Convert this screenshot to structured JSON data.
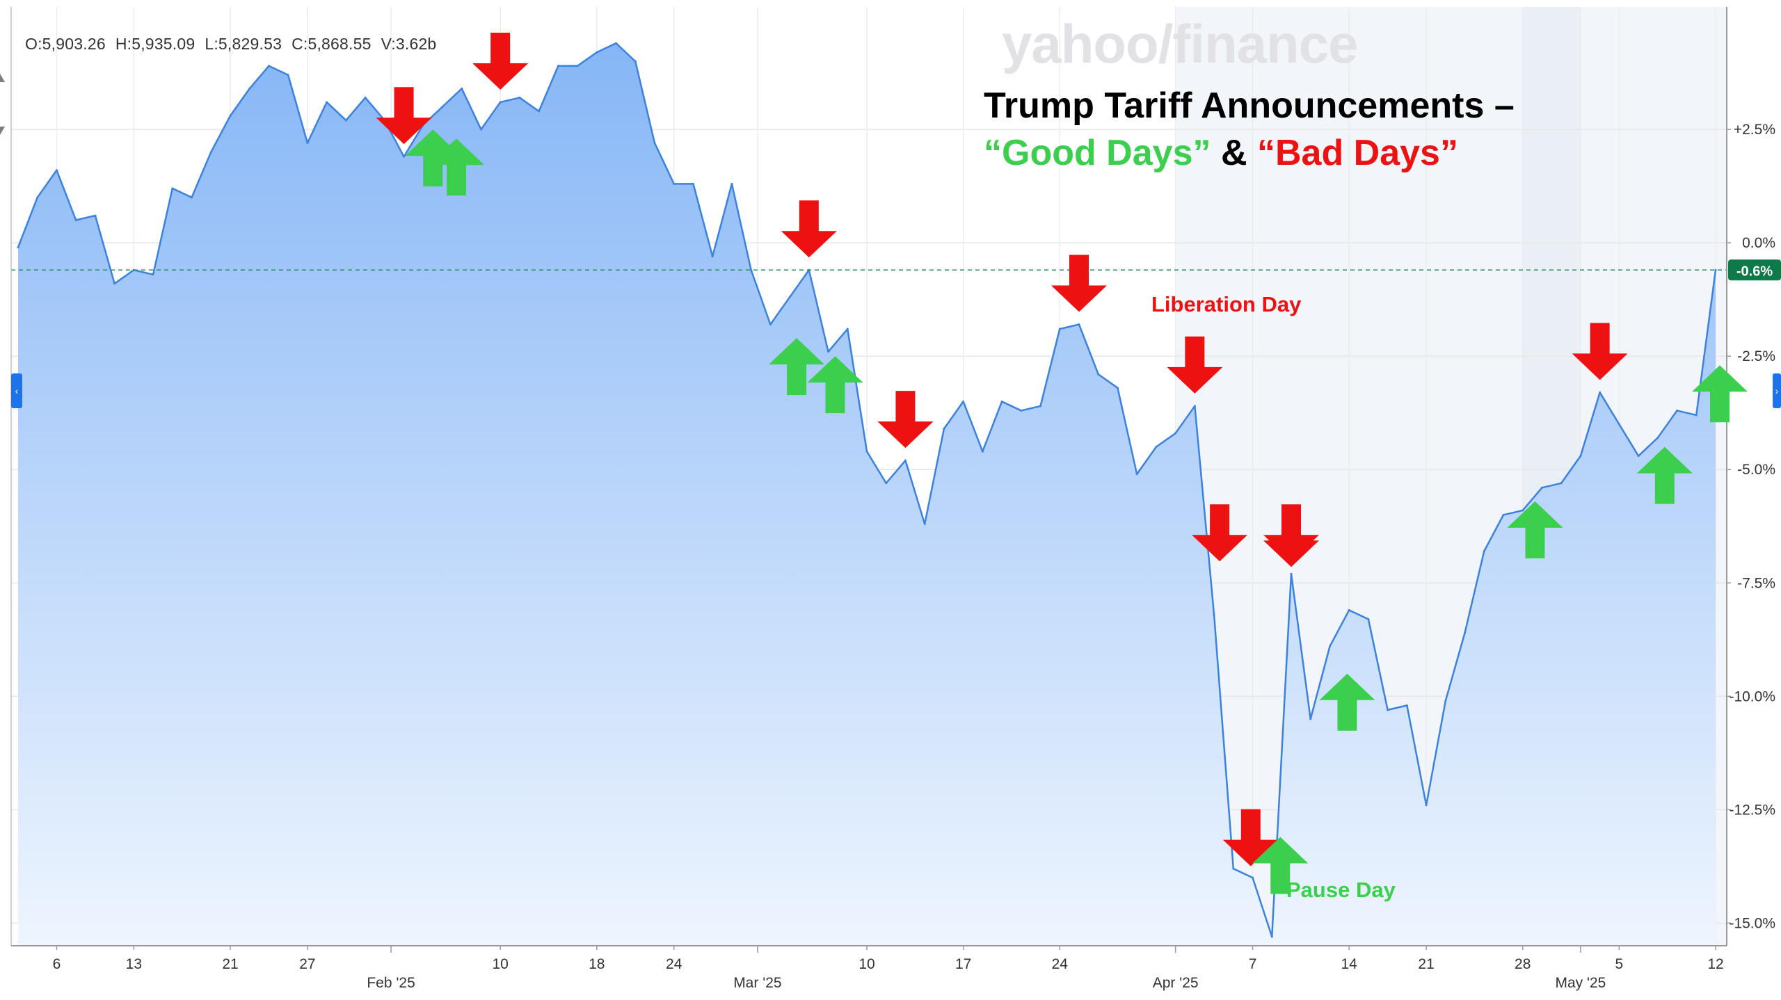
{
  "ohlc": {
    "open": "O:5,903.26",
    "high": "H:5,935.09",
    "low": "L:5,829.53",
    "close": "C:5,868.55",
    "volume": "V:3.62b"
  },
  "watermark": "yahoo/finance",
  "title_line1": "Trump Tariff Announcements –",
  "title_good": "“Good Days”",
  "title_amp": "&",
  "title_bad": "“Bad Days”",
  "annotations": {
    "liberation_day": "Liberation Day",
    "pause_day": "Pause Day"
  },
  "current_badge": "-0.6%",
  "colors": {
    "line": "#3b82e0",
    "fill_top": "#86b6f6",
    "fill_bottom": "#eef5fe",
    "good": "#3ccf4e",
    "bad": "#ee1111",
    "baseline": "#1f8f5f",
    "badge": "#0e7a4a"
  },
  "nav": {
    "left": "‹",
    "right": "›"
  },
  "chart_data": {
    "type": "area",
    "title": "Trump Tariff Announcements – “Good Days” & “Bad Days”",
    "ylabel": "",
    "ylim": [
      -15.5,
      5.2
    ],
    "y_ticks": [
      2.5,
      0.0,
      -2.5,
      -5.0,
      -7.5,
      -10.0,
      -12.5,
      -15.0
    ],
    "y_tick_labels": [
      "+2.5%",
      "0.0%",
      "-2.5%",
      "-5.0%",
      "-7.5%",
      "-10.0%",
      "-12.5%",
      "-15.0%"
    ],
    "reference_line": -0.6,
    "x_ticks": [
      {
        "label": "6",
        "x": "2025-01-06"
      },
      {
        "label": "13",
        "x": "2025-01-13"
      },
      {
        "label": "21",
        "x": "2025-01-21"
      },
      {
        "label": "27",
        "x": "2025-01-27"
      },
      {
        "label": "Feb '25",
        "x": "2025-02-01",
        "major": true
      },
      {
        "label": "10",
        "x": "2025-02-10"
      },
      {
        "label": "18",
        "x": "2025-02-18"
      },
      {
        "label": "24",
        "x": "2025-02-24"
      },
      {
        "label": "Mar '25",
        "x": "2025-03-01",
        "major": true
      },
      {
        "label": "10",
        "x": "2025-03-10"
      },
      {
        "label": "17",
        "x": "2025-03-17"
      },
      {
        "label": "24",
        "x": "2025-03-24"
      },
      {
        "label": "Apr '25",
        "x": "2025-04-01",
        "major": true
      },
      {
        "label": "7",
        "x": "2025-04-07"
      },
      {
        "label": "14",
        "x": "2025-04-14"
      },
      {
        "label": "21",
        "x": "2025-04-21"
      },
      {
        "label": "28",
        "x": "2025-04-28"
      },
      {
        "label": "May '25",
        "x": "2025-05-01",
        "major": true
      },
      {
        "label": "5",
        "x": "2025-05-05"
      },
      {
        "label": "12",
        "x": "2025-05-12"
      }
    ],
    "series": [
      {
        "points": [
          [
            "2025-01-02",
            -0.1
          ],
          [
            "2025-01-03",
            1.0
          ],
          [
            "2025-01-06",
            1.6
          ],
          [
            "2025-01-07",
            0.5
          ],
          [
            "2025-01-08",
            0.6
          ],
          [
            "2025-01-10",
            -0.9
          ],
          [
            "2025-01-13",
            -0.6
          ],
          [
            "2025-01-14",
            -0.7
          ],
          [
            "2025-01-15",
            1.2
          ],
          [
            "2025-01-16",
            1.0
          ],
          [
            "2025-01-17",
            2.0
          ],
          [
            "2025-01-21",
            2.8
          ],
          [
            "2025-01-22",
            3.4
          ],
          [
            "2025-01-23",
            3.9
          ],
          [
            "2025-01-24",
            3.7
          ],
          [
            "2025-01-27",
            2.2
          ],
          [
            "2025-01-28",
            3.1
          ],
          [
            "2025-01-29",
            2.7
          ],
          [
            "2025-01-30",
            3.2
          ],
          [
            "2025-01-31",
            2.7
          ],
          [
            "2025-02-03",
            1.9
          ],
          [
            "2025-02-04",
            2.6
          ],
          [
            "2025-02-05",
            3.0
          ],
          [
            "2025-02-06",
            3.4
          ],
          [
            "2025-02-07",
            2.5
          ],
          [
            "2025-02-10",
            3.1
          ],
          [
            "2025-02-11",
            3.2
          ],
          [
            "2025-02-12",
            2.9
          ],
          [
            "2025-02-13",
            3.9
          ],
          [
            "2025-02-14",
            3.9
          ],
          [
            "2025-02-18",
            4.2
          ],
          [
            "2025-02-19",
            4.4
          ],
          [
            "2025-02-20",
            4.0
          ],
          [
            "2025-02-21",
            2.2
          ],
          [
            "2025-02-24",
            1.3
          ],
          [
            "2025-02-25",
            1.3
          ],
          [
            "2025-02-26",
            -0.3
          ],
          [
            "2025-02-27",
            1.3
          ],
          [
            "2025-02-28",
            -0.6
          ],
          [
            "2025-03-03",
            -1.8
          ],
          [
            "2025-03-04",
            -1.2
          ],
          [
            "2025-03-05",
            -0.6
          ],
          [
            "2025-03-06",
            -2.4
          ],
          [
            "2025-03-07",
            -1.9
          ],
          [
            "2025-03-10",
            -4.6
          ],
          [
            "2025-03-11",
            -5.3
          ],
          [
            "2025-03-12",
            -4.8
          ],
          [
            "2025-03-13",
            -6.2
          ],
          [
            "2025-03-14",
            -4.1
          ],
          [
            "2025-03-17",
            -3.5
          ],
          [
            "2025-03-18",
            -4.6
          ],
          [
            "2025-03-19",
            -3.5
          ],
          [
            "2025-03-20",
            -3.7
          ],
          [
            "2025-03-21",
            -3.6
          ],
          [
            "2025-03-24",
            -1.9
          ],
          [
            "2025-03-25",
            -1.8
          ],
          [
            "2025-03-26",
            -2.9
          ],
          [
            "2025-03-27",
            -3.2
          ],
          [
            "2025-03-28",
            -5.1
          ],
          [
            "2025-03-31",
            -4.5
          ],
          [
            "2025-04-01",
            -4.2
          ],
          [
            "2025-04-02",
            -3.6
          ],
          [
            "2025-04-03",
            -8.2
          ],
          [
            "2025-04-04",
            -13.8
          ],
          [
            "2025-04-07",
            -14.0
          ],
          [
            "2025-04-08",
            -15.3
          ],
          [
            "2025-04-09",
            -7.3
          ],
          [
            "2025-04-10",
            -10.5
          ],
          [
            "2025-04-11",
            -8.9
          ],
          [
            "2025-04-14",
            -8.1
          ],
          [
            "2025-04-15",
            -8.3
          ],
          [
            "2025-04-16",
            -10.3
          ],
          [
            "2025-04-17",
            -10.2
          ],
          [
            "2025-04-21",
            -12.4
          ],
          [
            "2025-04-22",
            -10.1
          ],
          [
            "2025-04-23",
            -8.6
          ],
          [
            "2025-04-24",
            -6.8
          ],
          [
            "2025-04-25",
            -6.0
          ],
          [
            "2025-04-28",
            -5.9
          ],
          [
            "2025-04-29",
            -5.4
          ],
          [
            "2025-04-30",
            -5.3
          ],
          [
            "2025-05-01",
            -4.7
          ],
          [
            "2025-05-02",
            -3.3
          ],
          [
            "2025-05-05",
            -4.0
          ],
          [
            "2025-05-06",
            -4.7
          ],
          [
            "2025-05-07",
            -4.3
          ],
          [
            "2025-05-08",
            -3.7
          ],
          [
            "2025-05-09",
            -3.8
          ],
          [
            "2025-05-12",
            -0.6
          ]
        ]
      }
    ],
    "bad_day_arrows": [
      "2025-02-03",
      "2025-02-10",
      "2025-03-05",
      "2025-03-12",
      "2025-03-25",
      "2025-04-02",
      "2025-04-07",
      "2025-04-08",
      "2025-04-09",
      "2025-05-02"
    ],
    "good_day_arrows": [
      "2025-02-04",
      "2025-02-05",
      "2025-03-04",
      "2025-03-05",
      "2025-04-09",
      "2025-04-14",
      "2025-04-29",
      "2025-05-07",
      "2025-05-12"
    ]
  }
}
